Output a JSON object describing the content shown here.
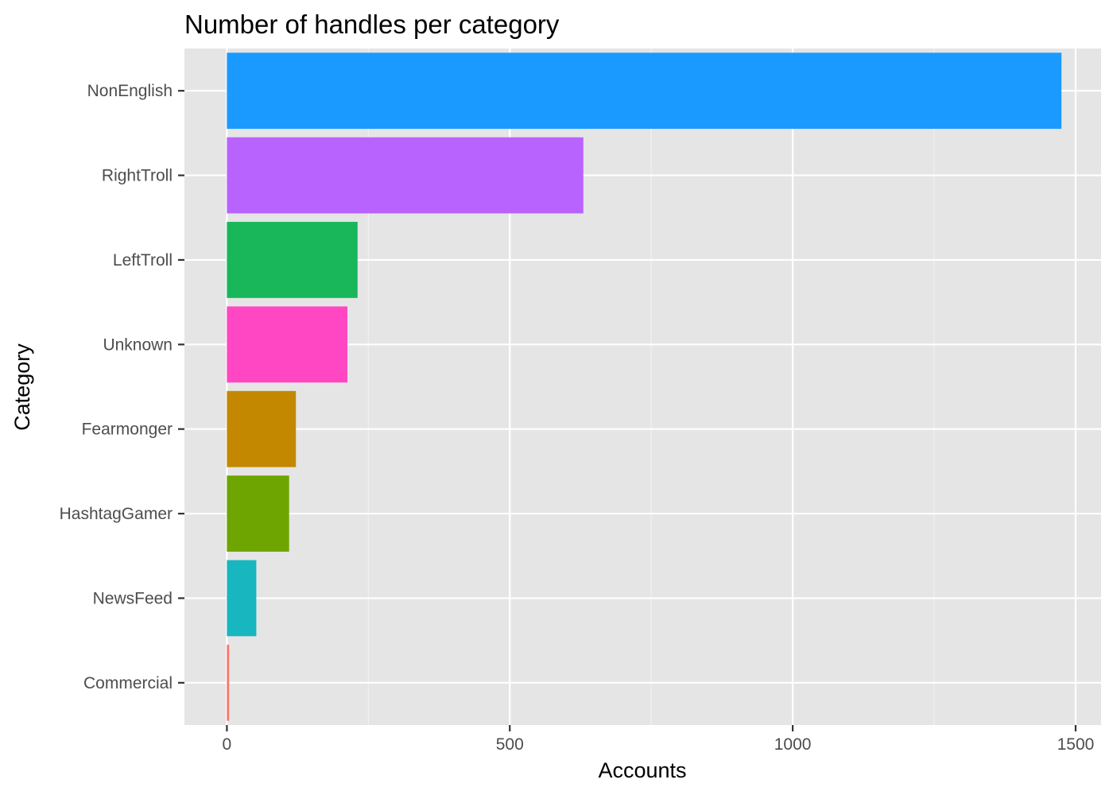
{
  "chart_data": {
    "type": "bar",
    "orientation": "horizontal",
    "title": "Number of handles per category",
    "xlabel": "Accounts",
    "ylabel": "Category",
    "categories": [
      "NonEnglish",
      "RightTroll",
      "LeftTroll",
      "Unknown",
      "Fearmonger",
      "HashtagGamer",
      "NewsFeed",
      "Commercial"
    ],
    "values": [
      1475,
      630,
      231,
      213,
      122,
      110,
      52,
      4
    ],
    "colors": [
      "#1A9AFF",
      "#B963FF",
      "#19B75A",
      "#FF47C3",
      "#C38800",
      "#6EA500",
      "#18B6BE",
      "#F8766D"
    ],
    "xlim": [
      -75,
      1545
    ],
    "x_ticks": [
      0,
      500,
      1000,
      1500
    ],
    "x_tick_labels": [
      "0",
      "500",
      "1000",
      "1500"
    ],
    "grid": true,
    "legend": "none",
    "background": "#E5E5E5"
  }
}
